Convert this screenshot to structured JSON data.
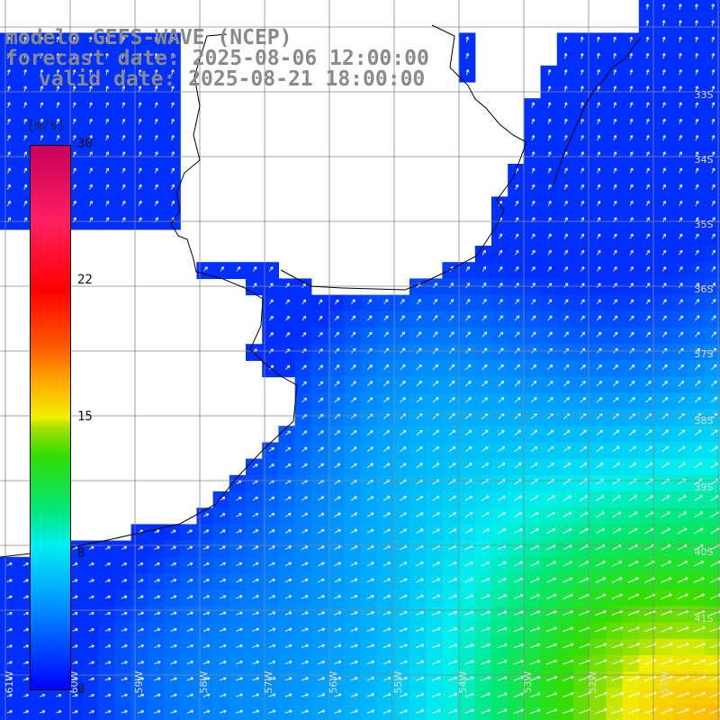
{
  "title": {
    "line1": "modelo GEFS-WAVE (NCEP)",
    "line2": "forecast date: 2025-08-06 12:00:00",
    "line3": "valid date: 2025-08-21 18:00:00"
  },
  "colorbar": {
    "unit": "[m/s]",
    "ticks": [
      "30",
      "22",
      "15",
      "8",
      "0"
    ],
    "min": 0,
    "max": 30
  },
  "map": {
    "lat_labels": [
      "33S",
      "34S",
      "35S",
      "36S",
      "37S",
      "38S",
      "39S",
      "40S",
      "41S"
    ],
    "lon_labels": [
      "61W",
      "60W",
      "59W",
      "58W",
      "57W",
      "56W",
      "55W",
      "54W",
      "53W",
      "52W",
      "51W"
    ],
    "land_color": "#ffffff",
    "grid_color": "#888888",
    "coast_color": "#000000",
    "arrow_color": "#ffffff"
  }
}
